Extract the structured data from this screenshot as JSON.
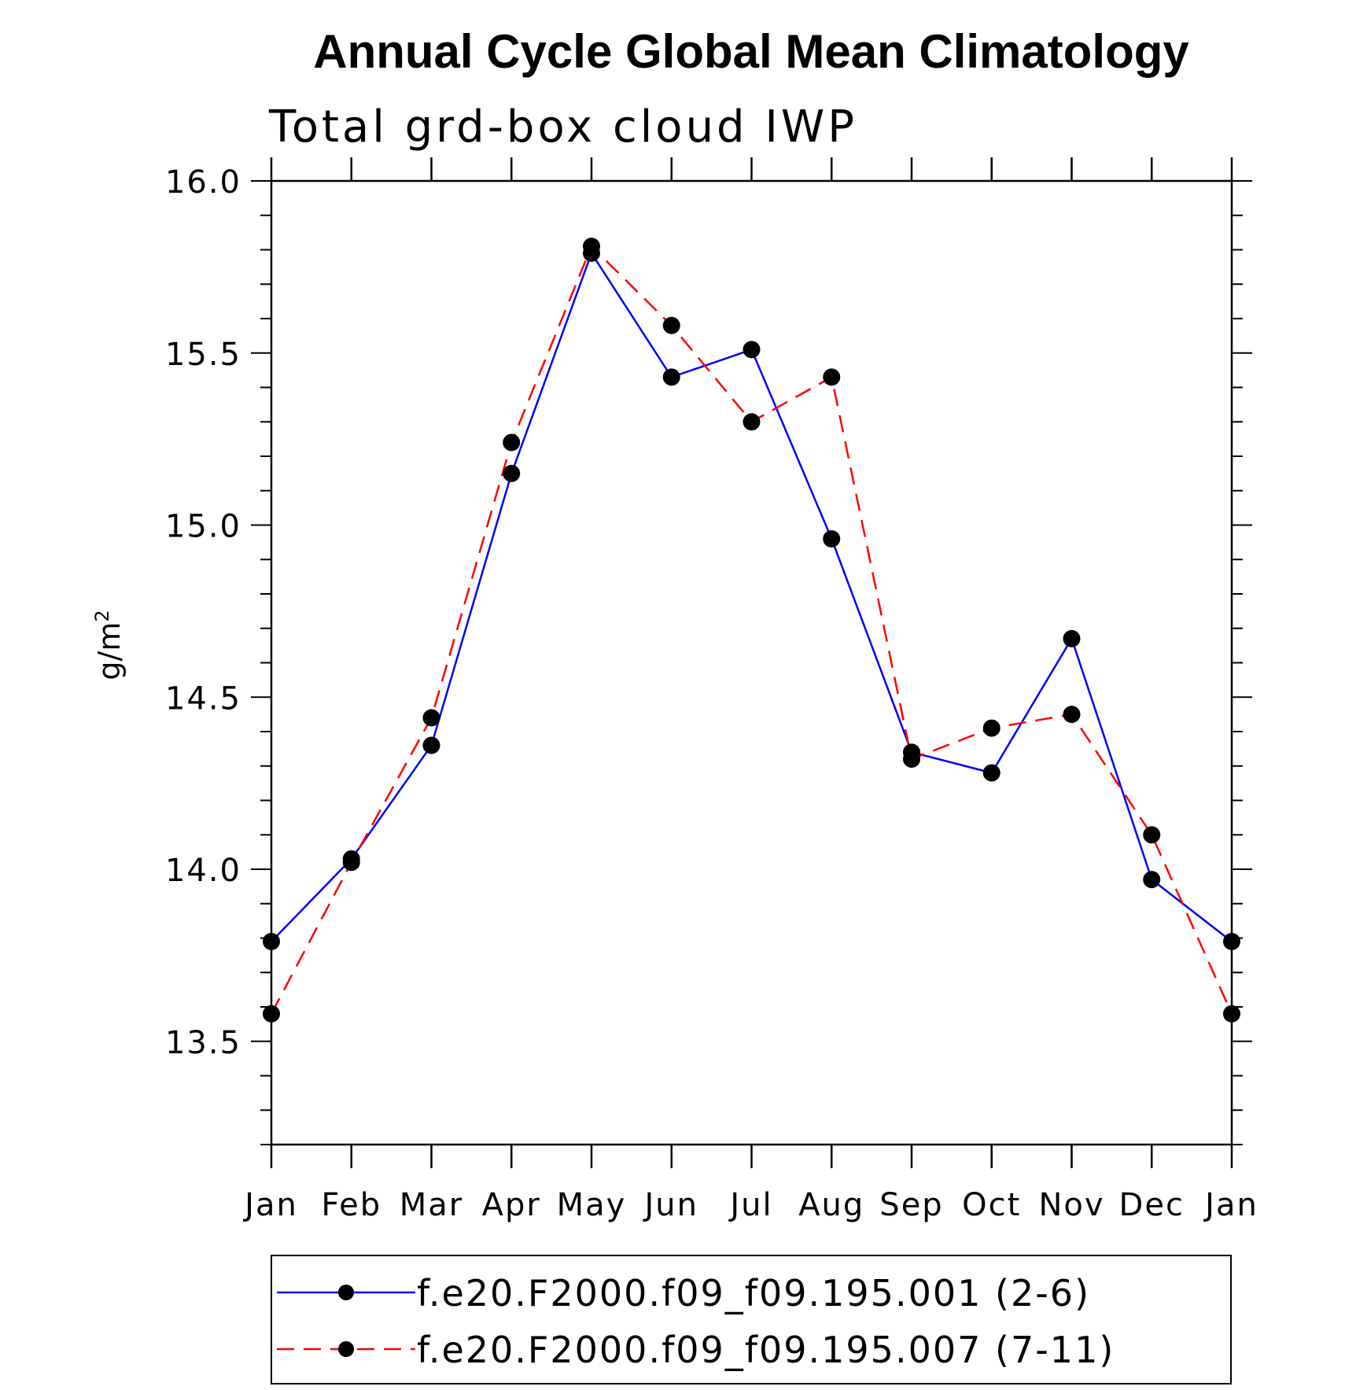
{
  "chart_data": {
    "type": "line",
    "title": "Annual Cycle Global Mean Climatology",
    "subtitle": "Total grd-box cloud IWP",
    "ylabel": "g/m",
    "ylabel_superscript": "2",
    "ylim": [
      13.2,
      16.0
    ],
    "y_ticks": [
      13.5,
      14.0,
      14.5,
      15.0,
      15.5,
      16.0
    ],
    "y_tick_labels": [
      "13.5",
      "14.0",
      "14.5",
      "15.0",
      "15.5",
      "16.0"
    ],
    "y_minor_step": 0.1,
    "categories": [
      "Jan",
      "Feb",
      "Mar",
      "Apr",
      "May",
      "Jun",
      "Jul",
      "Aug",
      "Sep",
      "Oct",
      "Nov",
      "Dec",
      "Jan"
    ],
    "grid": false,
    "legend_position": "bottom",
    "series": [
      {
        "name": "f.e20.F2000.f09_f09.195.001 (2-6)",
        "color": "#0000ff",
        "line_style": "solid",
        "marker": "filled-circle",
        "values": [
          13.79,
          14.03,
          14.36,
          15.15,
          15.79,
          15.43,
          15.51,
          14.96,
          14.34,
          14.28,
          14.67,
          13.97,
          13.79
        ]
      },
      {
        "name": "f.e20.F2000.f09_f09.195.007 (7-11)",
        "color": "#ff0000",
        "line_style": "dashed",
        "marker": "filled-circle",
        "values": [
          13.58,
          14.02,
          14.44,
          15.24,
          15.81,
          15.58,
          15.3,
          15.43,
          14.32,
          14.41,
          14.45,
          14.1,
          13.58
        ]
      }
    ]
  }
}
